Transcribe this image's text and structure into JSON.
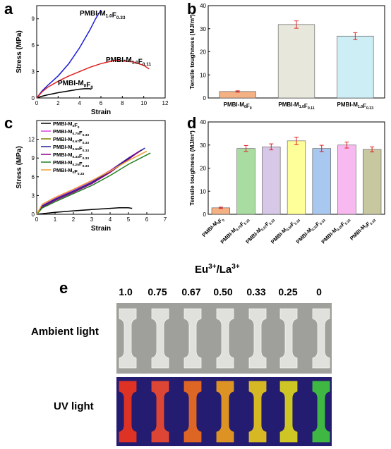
{
  "panels": {
    "a": "a",
    "b": "b",
    "c": "c",
    "d": "d",
    "e": "e"
  },
  "chart_data": [
    {
      "type": "line",
      "xlabel": "Strain",
      "ylabel": "Stress (MPa)",
      "xlim": [
        0,
        12
      ],
      "ylim": [
        0,
        10.5
      ],
      "xticks": [
        "0",
        "2",
        "4",
        "6",
        "8",
        "10",
        "12"
      ],
      "yticks": [
        "0",
        "3",
        "6",
        "9"
      ],
      "series": [
        {
          "name": "PMBI-M0F0",
          "color": "#000000",
          "x": [
            0,
            0.5,
            1,
            2,
            3,
            4,
            4.5,
            5.0,
            5.1
          ],
          "y": [
            0,
            0.2,
            0.35,
            0.6,
            0.8,
            1.0,
            1.05,
            1.05,
            0.95
          ]
        },
        {
          "name": "PMBI-M1.0F0.33",
          "color": "#1a1adb",
          "x": [
            0,
            0.5,
            1,
            2,
            3,
            4,
            5,
            5.5,
            6.0
          ],
          "y": [
            0,
            0.8,
            1.4,
            2.5,
            3.9,
            5.7,
            7.8,
            9.0,
            10.0
          ]
        },
        {
          "name": "PMBI-M1.0F0.11",
          "color": "#e02020",
          "x": [
            0,
            0.5,
            1,
            2,
            3,
            4,
            5,
            6,
            7,
            7.5,
            8,
            9,
            10,
            10.5
          ],
          "y": [
            0,
            0.7,
            1.2,
            1.9,
            2.5,
            3.0,
            3.5,
            3.9,
            4.2,
            4.3,
            4.2,
            4.1,
            3.7,
            3.3
          ]
        }
      ],
      "annotations": [
        {
          "main": "PMBI-M",
          "sub1": "1.0",
          "mid": "F",
          "sub2": "0.33"
        },
        {
          "main": "PMBI-M",
          "sub1": "1.0",
          "mid": "F",
          "sub2": "0.11"
        },
        {
          "main": "PMBI-M",
          "sub1": "0",
          "mid": "F",
          "sub2": "0"
        }
      ]
    },
    {
      "type": "bar",
      "ylabel": "Tensile toughness (MJ/m³)",
      "ylim": [
        0,
        40
      ],
      "yticks": [
        "0",
        "10",
        "20",
        "30",
        "40"
      ],
      "categories": [
        {
          "main": "PMBI-M",
          "sub1": "0",
          "mid": "F",
          "sub2": "0"
        },
        {
          "main": "PMBI-M",
          "sub1": "1.0",
          "mid": "F",
          "sub2": "0.11"
        },
        {
          "main": "PMBI-M",
          "sub1": "1.0",
          "mid": "F",
          "sub2": "0.33"
        }
      ],
      "values": [
        2.8,
        31.8,
        26.8
      ],
      "errors": [
        0.3,
        1.6,
        1.5
      ],
      "colors": [
        "#f4b183",
        "#e8e7dc",
        "#cdeef5"
      ]
    },
    {
      "type": "line",
      "xlabel": "Strain",
      "ylabel": "Stress (MPa)",
      "xlim": [
        0,
        7
      ],
      "ylim": [
        0,
        15
      ],
      "xticks": [
        "0",
        "1",
        "2",
        "3",
        "4",
        "5",
        "6",
        "7"
      ],
      "yticks": [
        "0",
        "3",
        "6",
        "9",
        "12"
      ],
      "series": [
        {
          "name": "PMBI-M0F0",
          "color": "#000000",
          "x": [
            0,
            1,
            2,
            3,
            4,
            4.5,
            5.0,
            5.2
          ],
          "y": [
            0,
            0.3,
            0.55,
            0.75,
            0.95,
            1.05,
            1.05,
            0.95
          ]
        },
        {
          "name": "PMBI-M0.75F0.33",
          "color": "#e040e0",
          "x": [
            0,
            0.3,
            1,
            2,
            3,
            4,
            5,
            5.7
          ],
          "y": [
            0,
            1.4,
            2.5,
            3.9,
            5.3,
            7.0,
            9.0,
            10.3
          ]
        },
        {
          "name": "PMBI-M0.67F0.33",
          "color": "#808000",
          "x": [
            0,
            0.3,
            1,
            2,
            3,
            4,
            5,
            5.8
          ],
          "y": [
            0,
            1.2,
            2.3,
            3.6,
            5.0,
            6.8,
            8.9,
            10.4
          ]
        },
        {
          "name": "PMBI-M0.50F0.33",
          "color": "#20209a",
          "x": [
            0,
            0.3,
            1,
            2,
            3,
            4,
            5,
            5.9
          ],
          "y": [
            0,
            1.3,
            2.4,
            3.7,
            5.1,
            6.9,
            9.0,
            10.6
          ]
        },
        {
          "name": "PMBI-M0.33F0.33",
          "color": "#8b008b",
          "x": [
            0,
            0.3,
            1,
            2,
            3,
            4,
            5,
            5.6
          ],
          "y": [
            0,
            1.1,
            2.2,
            3.5,
            4.9,
            6.7,
            8.8,
            10.1
          ]
        },
        {
          "name": "PMBI-M0.25F0.33",
          "color": "#208020",
          "x": [
            0,
            0.3,
            1,
            2,
            3,
            4,
            5,
            6.2
          ],
          "y": [
            0,
            1.0,
            2.0,
            3.3,
            4.6,
            6.2,
            8.0,
            9.8
          ]
        },
        {
          "name": "PMBI-M0F0.33",
          "color": "#f0a030",
          "x": [
            0,
            0.3,
            1,
            2,
            3,
            4,
            5,
            6.0
          ],
          "y": [
            0,
            1.6,
            2.7,
            4.0,
            5.4,
            6.9,
            8.6,
            10.1
          ]
        }
      ],
      "legend": [
        {
          "main": "PMBI-M",
          "sub1": "0",
          "mid": "F",
          "sub2": "0"
        },
        {
          "main": "PMBI-M",
          "sub1": "0.75",
          "mid": "F",
          "sub2": "0.33"
        },
        {
          "main": "PMBI-M",
          "sub1": "0.67",
          "mid": "F",
          "sub2": "0.33"
        },
        {
          "main": "PMBI-M",
          "sub1": "0.50",
          "mid": "F",
          "sub2": "0.33"
        },
        {
          "main": "PMBI-M",
          "sub1": "0.33",
          "mid": "F",
          "sub2": "0.33"
        },
        {
          "main": "PMBI-M",
          "sub1": "0.25",
          "mid": "F",
          "sub2": "0.33"
        },
        {
          "main": "PMBI-M",
          "sub1": "0",
          "mid": "F",
          "sub2": "0.33"
        }
      ],
      "legend_placement": "top-left"
    },
    {
      "type": "bar",
      "ylabel": "Tensile toughness (MJ/m³)",
      "ylim": [
        0,
        40
      ],
      "yticks": [
        "0",
        "10",
        "20",
        "30",
        "40"
      ],
      "categories": [
        {
          "main": "PMBI-M",
          "sub1": "0",
          "mid": "F",
          "sub2": "0"
        },
        {
          "main": "PMBI-M",
          "sub1": "0.75",
          "mid": "F",
          "sub2": "0.33"
        },
        {
          "main": "PMBI-M",
          "sub1": "0.67",
          "mid": "F",
          "sub2": "0.33"
        },
        {
          "main": "PMBI-M",
          "sub1": "0.50",
          "mid": "F",
          "sub2": "0.33"
        },
        {
          "main": "PMBI-M",
          "sub1": "0.33",
          "mid": "F",
          "sub2": "0.33"
        },
        {
          "main": "PMBI-M",
          "sub1": "0.25",
          "mid": "F",
          "sub2": "0.33"
        },
        {
          "main": "PMBI-M",
          "sub1": "0",
          "mid": "F",
          "sub2": "0.33"
        }
      ],
      "values": [
        2.8,
        28.5,
        29.2,
        31.8,
        28.5,
        30.0,
        28.1
      ],
      "errors": [
        0.3,
        1.3,
        1.3,
        1.6,
        1.4,
        1.3,
        1.1
      ],
      "colors": [
        "#f4b183",
        "#a8dca0",
        "#d8c8e8",
        "#ffff99",
        "#a8c8f0",
        "#f8b8f0",
        "#c8c8a0"
      ]
    }
  ],
  "photo": {
    "title_main": "Eu",
    "title_sup1": "3+",
    "title_mid": "/La",
    "title_sup2": "3+",
    "ratios": [
      "1.0",
      "0.75",
      "0.67",
      "0.50",
      "0.33",
      "0.25",
      "0"
    ],
    "row_labels": [
      "Ambient light",
      "UV light"
    ],
    "uv_colors": [
      "#e83420",
      "#e84830",
      "#e86a20",
      "#e89a20",
      "#e0c020",
      "#d8d020",
      "#40c040"
    ]
  }
}
